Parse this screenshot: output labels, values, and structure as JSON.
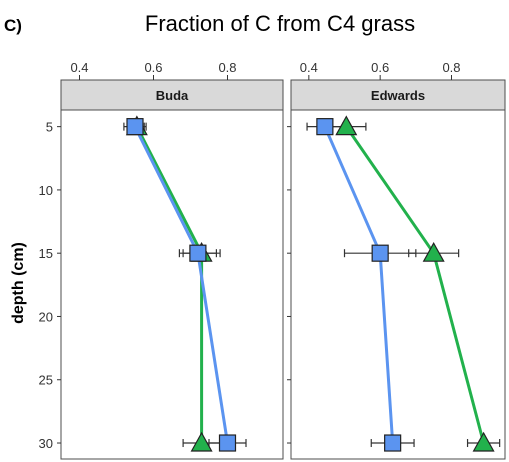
{
  "figure": {
    "panel_label": "C)",
    "title": "Fraction of C from C4 grass"
  },
  "chart_data": {
    "type": "line",
    "title": "Fraction of C from C4 grass",
    "xlabel": "",
    "ylabel": "depth (cm)",
    "x_axis_position": "top",
    "xlim": [
      0.35,
      0.95
    ],
    "ylim": [
      31.5,
      2.5
    ],
    "y_reversed": true,
    "xticks": [
      0.4,
      0.6,
      0.8
    ],
    "xtick_labels": [
      "0.4",
      "0.6",
      "0.8"
    ],
    "yticks": [
      5,
      10,
      15,
      20,
      25,
      30
    ],
    "ytick_labels": [
      "5",
      "10",
      "15",
      "20",
      "25",
      "30"
    ],
    "grid": false,
    "legend": "none",
    "facets": [
      {
        "name": "Buda",
        "series": [
          {
            "marker": "triangle",
            "color": "#22b14c",
            "points": [
              {
                "x": 0.555,
                "y": 5,
                "err": 0.02
              },
              {
                "x": 0.73,
                "y": 15,
                "err": 0.05
              },
              {
                "x": 0.73,
                "y": 30,
                "err": 0.05
              }
            ]
          },
          {
            "marker": "square",
            "color": "#5b94f0",
            "points": [
              {
                "x": 0.55,
                "y": 5,
                "err": 0.03
              },
              {
                "x": 0.72,
                "y": 15,
                "err": 0.05
              },
              {
                "x": 0.8,
                "y": 30,
                "err": 0.05
              }
            ]
          }
        ]
      },
      {
        "name": "Edwards",
        "series": [
          {
            "marker": "triangle",
            "color": "#22b14c",
            "points": [
              {
                "x": 0.505,
                "y": 5,
                "err": 0.055
              },
              {
                "x": 0.75,
                "y": 15,
                "err": 0.07
              },
              {
                "x": 0.89,
                "y": 30,
                "err": 0.045
              }
            ]
          },
          {
            "marker": "square",
            "color": "#5b94f0",
            "points": [
              {
                "x": 0.445,
                "y": 5,
                "err": 0.05
              },
              {
                "x": 0.6,
                "y": 15,
                "err": 0.1
              },
              {
                "x": 0.635,
                "y": 30,
                "err": 0.06
              }
            ]
          }
        ]
      }
    ]
  }
}
